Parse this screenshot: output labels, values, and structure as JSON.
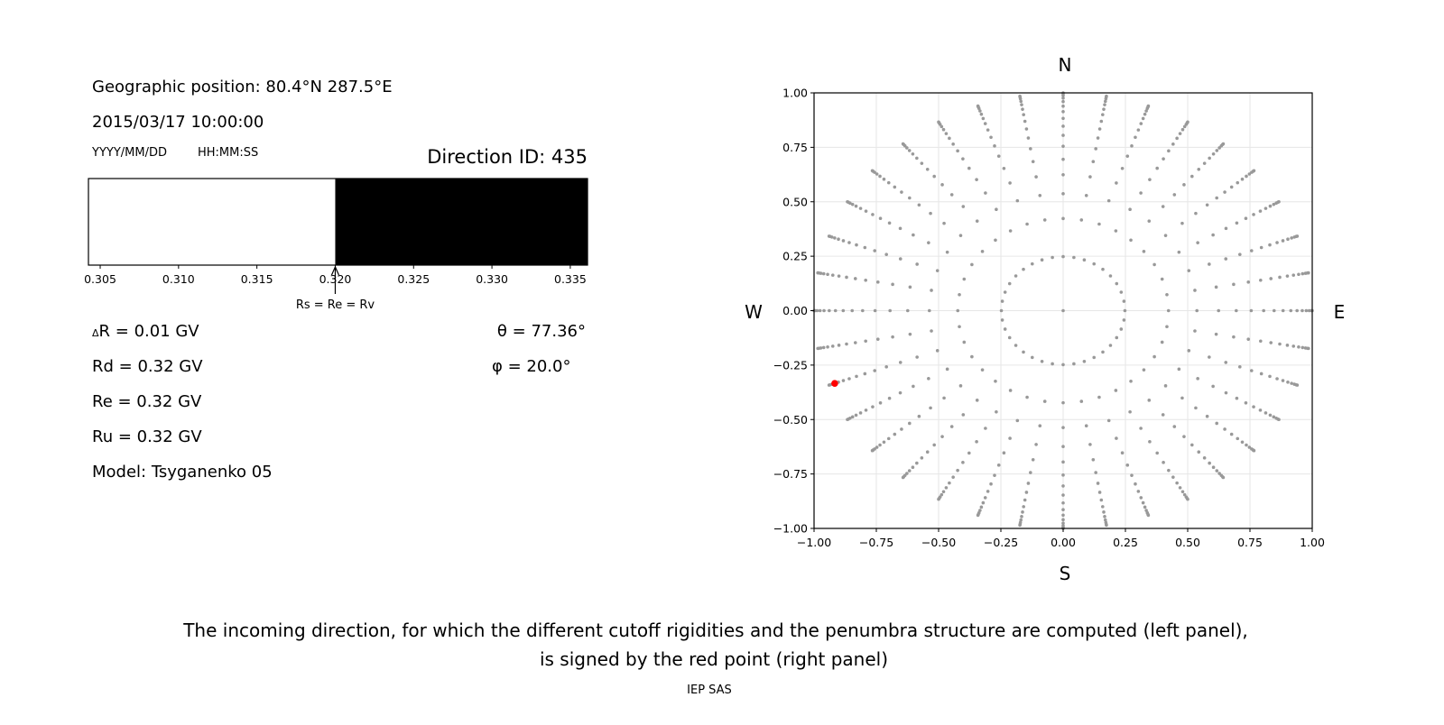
{
  "left_panel": {
    "geo_position": "Geographic position: 80.4°N 287.5°E",
    "datetime": "2015/03/17 10:00:00",
    "date_format_label": "YYYY/MM/DD",
    "time_format_label": "HH:MM:SS",
    "direction_id": "Direction ID: 435",
    "penumbra_bar": {
      "xlim": [
        0.30425,
        0.3361
      ],
      "allowed_from": 0.32,
      "colors": {
        "forbidden": "#ffffff",
        "allowed": "#000000"
      },
      "tick_labels": [
        "0.305",
        "0.310",
        "0.315",
        "0.320",
        "0.325",
        "0.330",
        "0.335"
      ],
      "ticks": [
        0.305,
        0.31,
        0.315,
        0.32,
        0.325,
        0.33,
        0.335
      ],
      "arrow_at": 0.32,
      "arrow_label": "Rs = Re = Rv"
    },
    "delta_r": "R = 0.01 GV",
    "delta_symbol": "Δ",
    "rd": "Rd = 0.32 GV",
    "re": "Re = 0.32 GV",
    "ru": "Ru = 0.32 GV",
    "model": "Model: Tsyganenko 05",
    "theta": "θ = 77.36°",
    "phi": "φ = 20.0°"
  },
  "chart_data": {
    "type": "scatter",
    "xlim": [
      -1.0,
      1.0
    ],
    "ylim": [
      -1.0,
      1.0
    ],
    "grid": true,
    "xtick_labels": [
      "−1.00",
      "−0.75",
      "−0.50",
      "−0.25",
      "0.00",
      "0.25",
      "0.50",
      "0.75",
      "1.00"
    ],
    "ytick_labels": [
      "−1.00",
      "−0.75",
      "−0.50",
      "−0.25",
      "0.00",
      "0.25",
      "0.50",
      "0.75",
      "1.00"
    ],
    "ticks": [
      -1.0,
      -0.75,
      -0.5,
      -0.25,
      0.0,
      0.25,
      0.5,
      0.75,
      1.0
    ],
    "direction_labels": {
      "north": "N",
      "south": "S",
      "west": "W",
      "east": "E"
    },
    "directions": {
      "center_point": [
        0.0,
        0.0
      ],
      "azimuths_deg": [
        0,
        10,
        20,
        30,
        40,
        50,
        60,
        70,
        80,
        90,
        100,
        110,
        120,
        130,
        140,
        150,
        160,
        170,
        180,
        190,
        200,
        210,
        220,
        230,
        240,
        250,
        260,
        270,
        280,
        290,
        300,
        310,
        320,
        330,
        340,
        350
      ],
      "radii": [
        0.248,
        0.423,
        0.537,
        0.624,
        0.695,
        0.755,
        0.805,
        0.847,
        0.883,
        0.914,
        0.939,
        0.96,
        0.976,
        0.988,
        0.996,
        1.0
      ],
      "color": "#999999"
    },
    "selected_point": {
      "x": -0.917,
      "y": -0.334,
      "color": "#ff0000"
    }
  },
  "caption": {
    "line1": "The incoming direction, for which the different cutoff rigidities and the penumbra structure are computed (left panel),",
    "line2": "is signed by the red point (right panel)"
  },
  "footer": "IEP SAS"
}
